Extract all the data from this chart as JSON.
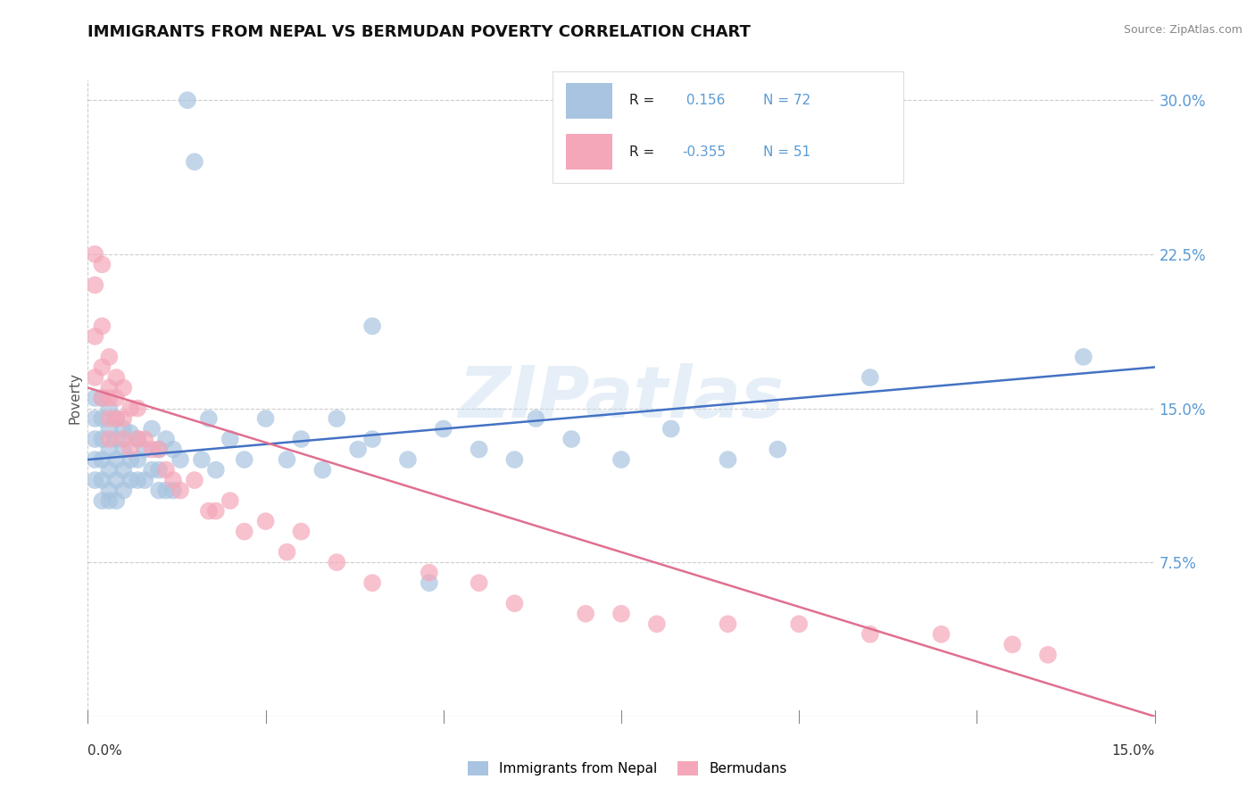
{
  "title": "IMMIGRANTS FROM NEPAL VS BERMUDAN POVERTY CORRELATION CHART",
  "source": "Source: ZipAtlas.com",
  "ylabel": "Poverty",
  "xlim": [
    0.0,
    0.15
  ],
  "ylim": [
    0.0,
    0.31
  ],
  "xtick_positions": [
    0.0,
    0.15
  ],
  "xticklabels": [
    "0.0%",
    "15.0%"
  ],
  "ytick_positions": [
    0.075,
    0.15,
    0.225,
    0.3
  ],
  "yticklabels": [
    "7.5%",
    "15.0%",
    "22.5%",
    "30.0%"
  ],
  "series1_label": "Immigrants from Nepal",
  "series2_label": "Bermudans",
  "series1_color": "#a8c4e0",
  "series2_color": "#f4a7b9",
  "series1_line_color": "#4472c4",
  "series2_line_color": "#e07090",
  "series1_R": 0.156,
  "series1_N": 72,
  "series2_R": -0.355,
  "series2_N": 51,
  "watermark": "ZIPatlas",
  "background_color": "#ffffff",
  "grid_color": "#cccccc",
  "legend_R_color": "#5b9bd5",
  "legend_N_color": "#5b9bd5",
  "series1_x": [
    0.001,
    0.001,
    0.001,
    0.001,
    0.001,
    0.002,
    0.002,
    0.002,
    0.002,
    0.002,
    0.002,
    0.003,
    0.003,
    0.003,
    0.003,
    0.003,
    0.003,
    0.004,
    0.004,
    0.004,
    0.004,
    0.004,
    0.005,
    0.005,
    0.005,
    0.005,
    0.006,
    0.006,
    0.006,
    0.007,
    0.007,
    0.007,
    0.008,
    0.008,
    0.009,
    0.009,
    0.01,
    0.01,
    0.01,
    0.011,
    0.011,
    0.012,
    0.012,
    0.013,
    0.014,
    0.015,
    0.016,
    0.017,
    0.018,
    0.02,
    0.022,
    0.025,
    0.028,
    0.03,
    0.033,
    0.035,
    0.038,
    0.04,
    0.045,
    0.048,
    0.055,
    0.06,
    0.068,
    0.075,
    0.082,
    0.09,
    0.097,
    0.11,
    0.04,
    0.05,
    0.063,
    0.14
  ],
  "series1_y": [
    0.155,
    0.145,
    0.135,
    0.125,
    0.115,
    0.155,
    0.145,
    0.135,
    0.125,
    0.115,
    0.105,
    0.15,
    0.14,
    0.13,
    0.12,
    0.11,
    0.105,
    0.145,
    0.135,
    0.125,
    0.115,
    0.105,
    0.14,
    0.13,
    0.12,
    0.11,
    0.138,
    0.125,
    0.115,
    0.135,
    0.125,
    0.115,
    0.13,
    0.115,
    0.14,
    0.12,
    0.13,
    0.12,
    0.11,
    0.135,
    0.11,
    0.13,
    0.11,
    0.125,
    0.3,
    0.27,
    0.125,
    0.145,
    0.12,
    0.135,
    0.125,
    0.145,
    0.125,
    0.135,
    0.12,
    0.145,
    0.13,
    0.135,
    0.125,
    0.065,
    0.13,
    0.125,
    0.135,
    0.125,
    0.14,
    0.125,
    0.13,
    0.165,
    0.19,
    0.14,
    0.145,
    0.175
  ],
  "series2_x": [
    0.001,
    0.001,
    0.001,
    0.001,
    0.002,
    0.002,
    0.002,
    0.002,
    0.003,
    0.003,
    0.003,
    0.003,
    0.003,
    0.004,
    0.004,
    0.004,
    0.005,
    0.005,
    0.005,
    0.006,
    0.006,
    0.007,
    0.007,
    0.008,
    0.009,
    0.01,
    0.011,
    0.012,
    0.013,
    0.015,
    0.017,
    0.018,
    0.02,
    0.022,
    0.025,
    0.028,
    0.03,
    0.035,
    0.04,
    0.048,
    0.055,
    0.06,
    0.07,
    0.075,
    0.08,
    0.09,
    0.1,
    0.11,
    0.12,
    0.13,
    0.135
  ],
  "series2_y": [
    0.225,
    0.21,
    0.185,
    0.165,
    0.22,
    0.19,
    0.17,
    0.155,
    0.175,
    0.16,
    0.155,
    0.145,
    0.135,
    0.165,
    0.155,
    0.145,
    0.16,
    0.145,
    0.135,
    0.15,
    0.13,
    0.15,
    0.135,
    0.135,
    0.13,
    0.13,
    0.12,
    0.115,
    0.11,
    0.115,
    0.1,
    0.1,
    0.105,
    0.09,
    0.095,
    0.08,
    0.09,
    0.075,
    0.065,
    0.07,
    0.065,
    0.055,
    0.05,
    0.05,
    0.045,
    0.045,
    0.045,
    0.04,
    0.04,
    0.035,
    0.03
  ]
}
